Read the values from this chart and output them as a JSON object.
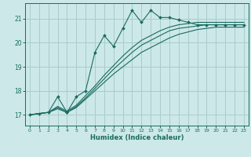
{
  "xlabel": "Humidex (Indice chaleur)",
  "ylabel": "",
  "bg_color": "#cce8e8",
  "grid_color": "#aacccc",
  "line_color": "#1a6b60",
  "xlim": [
    -0.5,
    23.5
  ],
  "ylim": [
    16.55,
    21.65
  ],
  "yticks": [
    17,
    18,
    19,
    20,
    21
  ],
  "xticks": [
    0,
    1,
    2,
    3,
    4,
    5,
    6,
    7,
    8,
    9,
    10,
    11,
    12,
    13,
    14,
    15,
    16,
    17,
    18,
    19,
    20,
    21,
    22,
    23
  ],
  "lines": [
    {
      "x": [
        0,
        1,
        2,
        3,
        4,
        4,
        5,
        6,
        7,
        8,
        9,
        10,
        11,
        12,
        13,
        14,
        15,
        16,
        17,
        18,
        19,
        20,
        21,
        22,
        23
      ],
      "y": [
        17.0,
        17.05,
        17.1,
        17.75,
        17.1,
        17.1,
        17.75,
        18.0,
        19.6,
        20.3,
        19.85,
        20.6,
        21.35,
        20.85,
        21.35,
        21.05,
        21.05,
        20.95,
        20.85,
        20.75,
        20.75,
        20.75,
        20.75,
        20.75,
        20.75
      ],
      "marker": true
    },
    {
      "x": [
        0,
        1,
        2,
        3,
        4,
        5,
        6,
        7,
        8,
        9,
        10,
        11,
        12,
        13,
        14,
        15,
        16,
        17,
        18,
        19,
        20,
        21,
        22,
        23
      ],
      "y": [
        17.0,
        17.05,
        17.1,
        17.35,
        17.15,
        17.4,
        17.8,
        18.2,
        18.65,
        19.05,
        19.45,
        19.8,
        20.1,
        20.3,
        20.5,
        20.65,
        20.75,
        20.8,
        20.85,
        20.85,
        20.85,
        20.85,
        20.85,
        20.85
      ],
      "marker": false
    },
    {
      "x": [
        0,
        1,
        2,
        3,
        4,
        5,
        6,
        7,
        8,
        9,
        10,
        11,
        12,
        13,
        14,
        15,
        16,
        17,
        18,
        19,
        20,
        21,
        22,
        23
      ],
      "y": [
        17.0,
        17.05,
        17.1,
        17.3,
        17.1,
        17.35,
        17.7,
        18.1,
        18.5,
        18.9,
        19.25,
        19.6,
        19.9,
        20.1,
        20.3,
        20.5,
        20.6,
        20.65,
        20.7,
        20.75,
        20.75,
        20.75,
        20.75,
        20.75
      ],
      "marker": false
    },
    {
      "x": [
        0,
        1,
        2,
        3,
        4,
        5,
        6,
        7,
        8,
        9,
        10,
        11,
        12,
        13,
        14,
        15,
        16,
        17,
        18,
        19,
        20,
        21,
        22,
        23
      ],
      "y": [
        17.0,
        17.05,
        17.1,
        17.25,
        17.1,
        17.3,
        17.65,
        18.0,
        18.35,
        18.7,
        19.0,
        19.3,
        19.6,
        19.8,
        20.0,
        20.2,
        20.35,
        20.45,
        20.55,
        20.6,
        20.65,
        20.65,
        20.65,
        20.65
      ],
      "marker": false
    }
  ]
}
